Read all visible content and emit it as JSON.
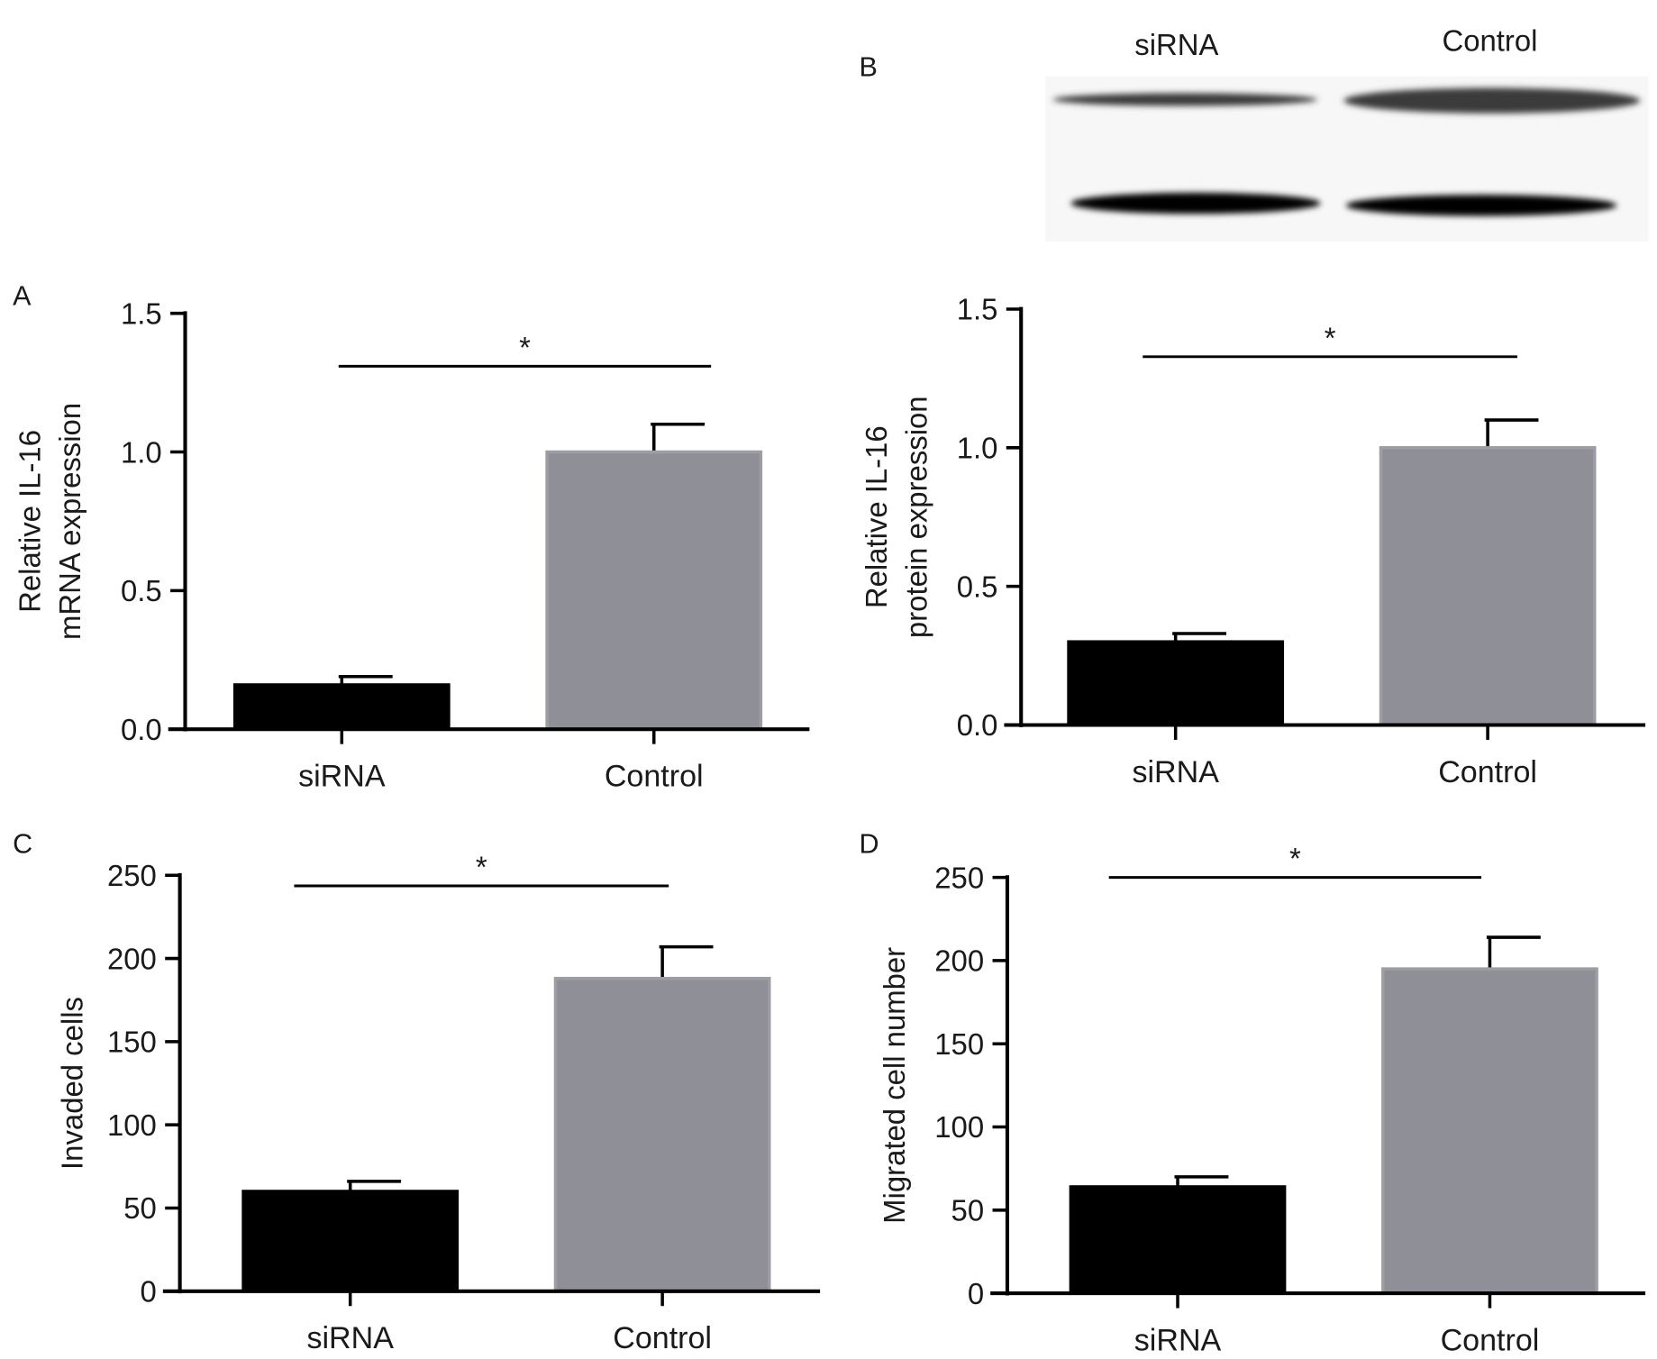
{
  "colors": {
    "sirna_bar": "#000000",
    "control_bar": "#8f8f97",
    "axis": "#000000"
  },
  "blot": {
    "panel_label": "B",
    "lane_labels": [
      "siRNA",
      "Control"
    ]
  },
  "chart_data": [
    {
      "panel_label": "A",
      "type": "bar",
      "categories": [
        "siRNA",
        "Control"
      ],
      "values": [
        0.16,
        1.0
      ],
      "errors": [
        0.03,
        0.1
      ],
      "ylabel": [
        "Relative IL-16",
        "mRNA expression"
      ],
      "ylim": [
        0,
        1.5
      ],
      "yticks": [
        "0.0",
        "0.5",
        "1.0",
        "1.5"
      ],
      "ytick_values": [
        0,
        0.5,
        1.0,
        1.5
      ],
      "significance": "*",
      "grid": false
    },
    {
      "panel_label": "",
      "type": "bar",
      "categories": [
        "siRNA",
        "Control"
      ],
      "values": [
        0.3,
        1.0
      ],
      "errors": [
        0.03,
        0.1
      ],
      "ylabel": [
        "Relative IL-16",
        "protein expression"
      ],
      "ylim": [
        0,
        1.5
      ],
      "yticks": [
        "0.0",
        "0.5",
        "1.0",
        "1.5"
      ],
      "ytick_values": [
        0,
        0.5,
        1.0,
        1.5
      ],
      "significance": "*",
      "grid": false
    },
    {
      "panel_label": "C",
      "type": "bar",
      "categories": [
        "siRNA",
        "Control"
      ],
      "values": [
        60,
        188
      ],
      "errors": [
        6,
        19
      ],
      "ylabel": [
        "Invaded cells"
      ],
      "ylim": [
        0,
        250
      ],
      "yticks": [
        "0",
        "50",
        "100",
        "150",
        "200",
        "250"
      ],
      "ytick_values": [
        0,
        50,
        100,
        150,
        200,
        250
      ],
      "significance": "*",
      "grid": false
    },
    {
      "panel_label": "D",
      "type": "bar",
      "categories": [
        "siRNA",
        "Control"
      ],
      "values": [
        64,
        195
      ],
      "errors": [
        6,
        19
      ],
      "ylabel": [
        "Migrated cell number"
      ],
      "ylim": [
        0,
        250
      ],
      "yticks": [
        "0",
        "50",
        "100",
        "150",
        "200",
        "250"
      ],
      "ytick_values": [
        0,
        50,
        100,
        150,
        200,
        250
      ],
      "significance": "*",
      "grid": false
    }
  ]
}
